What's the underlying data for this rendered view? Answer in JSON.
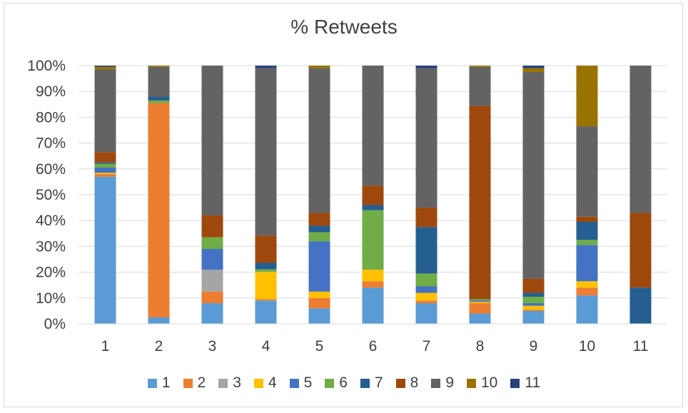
{
  "chart_data": {
    "type": "bar",
    "stacked": true,
    "percent_stacked": true,
    "title": "% Retweets",
    "xlabel": "",
    "ylabel": "",
    "ylim": [
      0,
      100
    ],
    "y_ticks": [
      "0%",
      "10%",
      "20%",
      "30%",
      "40%",
      "50%",
      "60%",
      "70%",
      "80%",
      "90%",
      "100%"
    ],
    "grid": true,
    "legend_position": "bottom",
    "categories": [
      "1",
      "2",
      "3",
      "4",
      "5",
      "6",
      "7",
      "8",
      "9",
      "10",
      "11"
    ],
    "series": [
      {
        "name": "1",
        "color": "#5b9bd5",
        "values": [
          57,
          2.5,
          8,
          9,
          6,
          14,
          8,
          4,
          5,
          11,
          0
        ]
      },
      {
        "name": "2",
        "color": "#ed7d31",
        "values": [
          1,
          83,
          4.5,
          0.5,
          4,
          2.5,
          1,
          4,
          0.5,
          3,
          0
        ]
      },
      {
        "name": "3",
        "color": "#a5a5a5",
        "values": [
          0,
          0,
          8.5,
          0,
          0,
          0,
          0,
          0,
          0,
          0,
          0
        ]
      },
      {
        "name": "4",
        "color": "#ffc000",
        "values": [
          0.5,
          0,
          0,
          10.5,
          2.5,
          4.5,
          3,
          0.5,
          1.5,
          2.5,
          0
        ]
      },
      {
        "name": "5",
        "color": "#4472c4",
        "values": [
          2,
          0,
          8,
          0,
          19.5,
          0,
          2.5,
          0.5,
          1,
          14,
          0
        ]
      },
      {
        "name": "6",
        "color": "#70ad47",
        "values": [
          1.5,
          1,
          4.5,
          1,
          3.5,
          23,
          5,
          0.5,
          2.5,
          2,
          0
        ]
      },
      {
        "name": "7",
        "color": "#255e91",
        "values": [
          0.5,
          1.5,
          0,
          2.5,
          2.5,
          2,
          18,
          0,
          1.5,
          7,
          14
        ]
      },
      {
        "name": "8",
        "color": "#9e480e",
        "values": [
          4,
          0,
          8.5,
          10.5,
          5,
          7.5,
          7.5,
          75,
          5.5,
          2,
          29
        ]
      },
      {
        "name": "9",
        "color": "#636363",
        "values": [
          32,
          11.5,
          58,
          64.5,
          56,
          46.5,
          54,
          15,
          80,
          35,
          57
        ]
      },
      {
        "name": "10",
        "color": "#997300",
        "values": [
          1,
          0.5,
          0,
          0,
          1,
          0,
          0,
          0.5,
          1.5,
          23.5,
          0
        ]
      },
      {
        "name": "11",
        "color": "#264478",
        "values": [
          0.5,
          0,
          0,
          1,
          0,
          0,
          1,
          0,
          1,
          0,
          0
        ]
      }
    ]
  }
}
